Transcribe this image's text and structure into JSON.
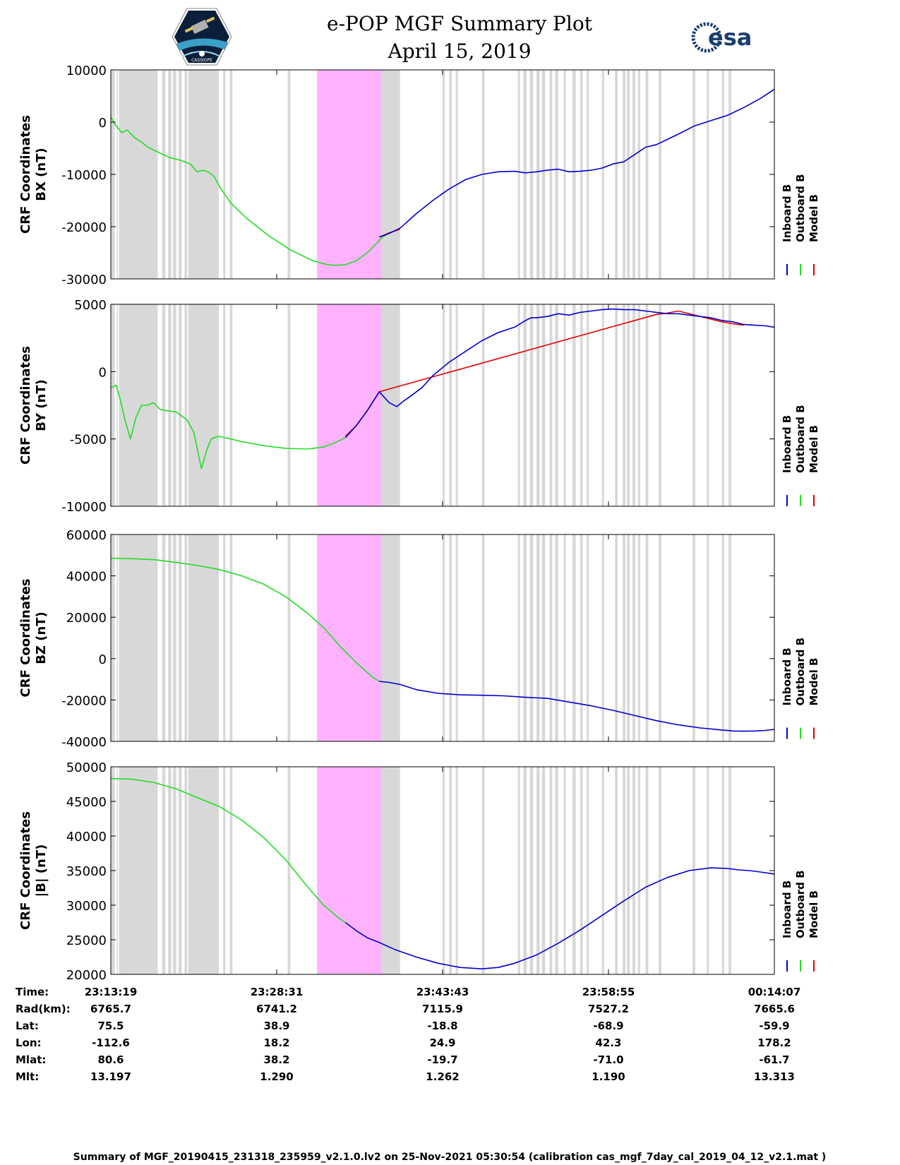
{
  "header": {
    "title": "e-POP MGF Summary Plot",
    "date": "April 15, 2019",
    "left_logo": "cassiope-satellite-logo",
    "right_logo": "esa-logo",
    "right_logo_text": "esa"
  },
  "legend": [
    "Inboard B",
    "Outboard B",
    "Model B"
  ],
  "colors": {
    "inboard": "#0000cc",
    "outboard": "#22dd22",
    "model": "#dd0000",
    "gray_band": "#d8d8d8",
    "magenta_band": "#ffb3ff"
  },
  "shading": {
    "time_range_min": [
      0,
      60.8
    ],
    "gray_intervals_min": [
      [
        0.0,
        0.35
      ],
      [
        0.55,
        0.65
      ],
      [
        0.75,
        4.3
      ],
      [
        4.7,
        5.0
      ],
      [
        5.25,
        5.55
      ],
      [
        5.7,
        6.0
      ],
      [
        6.2,
        6.5
      ],
      [
        6.75,
        7.0
      ],
      [
        7.1,
        9.9
      ],
      [
        10.3,
        10.5
      ],
      [
        10.9,
        11.15
      ],
      [
        16.2,
        16.45
      ],
      [
        24.2,
        24.5
      ],
      [
        25.2,
        25.45
      ],
      [
        25.9,
        26.15
      ],
      [
        30.4,
        30.6
      ],
      [
        31.0,
        31.25
      ],
      [
        31.6,
        31.8
      ],
      [
        34.0,
        34.25
      ],
      [
        37.3,
        37.5
      ],
      [
        37.8,
        38.1
      ],
      [
        38.4,
        38.7
      ],
      [
        39.0,
        39.3
      ],
      [
        39.5,
        39.8
      ],
      [
        40.2,
        40.45
      ],
      [
        40.7,
        41.0
      ],
      [
        41.5,
        41.7
      ],
      [
        42.3,
        42.6
      ],
      [
        43.0,
        43.25
      ],
      [
        43.6,
        43.8
      ],
      [
        45.0,
        45.2
      ],
      [
        46.2,
        46.45
      ],
      [
        46.9,
        47.15
      ],
      [
        47.3,
        47.55
      ],
      [
        47.8,
        48.05
      ],
      [
        48.3,
        48.5
      ],
      [
        49.0,
        49.25
      ],
      [
        50.2,
        50.45
      ],
      [
        53.3,
        53.55
      ],
      [
        54.6,
        54.8
      ],
      [
        56.0,
        56.2
      ],
      [
        56.6,
        56.85
      ]
    ],
    "extra_gray_min": [
      [
        24.2,
        26.5
      ]
    ],
    "magenta_interval_min": [
      18.9,
      24.8
    ]
  },
  "chart_data": [
    {
      "type": "line",
      "ylabel_line1": "CRF Coordinates",
      "ylabel_line2": "BX (nT)",
      "ylim": [
        -30000,
        10000
      ],
      "yticks": [
        10000,
        0,
        -10000,
        -20000,
        -30000
      ],
      "ytick_labels": [
        "10000",
        "0",
        "-10000",
        "-20000",
        "-30000"
      ],
      "series": [
        {
          "name": "Outboard B",
          "color": "#22dd22",
          "x": [
            0,
            0.4,
            1.0,
            1.5,
            2.2,
            2.8,
            3.4,
            4.0,
            4.6,
            5.4,
            6.4,
            7.3,
            7.9,
            8.5,
            9.0,
            9.5,
            10.0,
            11.0,
            12.5,
            14.5,
            16.5,
            18.5,
            19.7,
            20.5,
            21.5,
            22.5,
            23.5,
            24.3,
            24.9,
            25.3
          ],
          "y": [
            1000,
            -500,
            -2000,
            -1500,
            -3000,
            -3800,
            -4800,
            -5400,
            -6000,
            -6800,
            -7300,
            -8000,
            -9500,
            -9200,
            -9600,
            -10500,
            -12500,
            -15500,
            -18500,
            -21800,
            -24500,
            -26500,
            -27200,
            -27400,
            -27300,
            -26500,
            -25000,
            -23300,
            -22000,
            -21500
          ]
        },
        {
          "name": "Model B",
          "color": "#dd0000",
          "x": [
            24.6,
            25.5,
            26.5
          ],
          "y": [
            -22000,
            -21200,
            -20500
          ]
        },
        {
          "name": "Inboard B",
          "color": "#0000cc",
          "x": [
            24.6,
            25.5,
            26.5,
            28.0,
            29.5,
            31.0,
            32.5,
            34.0,
            35.5,
            37.0,
            38.0,
            39.0,
            40.0,
            41.0,
            42.0,
            43.0,
            44.0,
            45.0,
            46.0,
            47.0,
            48.0,
            49.0,
            50.0,
            51.0,
            52.0,
            53.5,
            55.0,
            56.5,
            58.0,
            59.5,
            60.8
          ],
          "y": [
            -22000,
            -21300,
            -20300,
            -17500,
            -15000,
            -12800,
            -11000,
            -10000,
            -9500,
            -9400,
            -9700,
            -9500,
            -9200,
            -9000,
            -9500,
            -9400,
            -9200,
            -8800,
            -8000,
            -7600,
            -6200,
            -4800,
            -4300,
            -3300,
            -2300,
            -700,
            300,
            1300,
            2800,
            4500,
            6300
          ]
        }
      ]
    },
    {
      "type": "line",
      "ylabel_line1": "CRF Coordinates",
      "ylabel_line2": "BY (nT)",
      "ylim": [
        -10000,
        5000
      ],
      "yticks": [
        5000,
        0,
        -5000,
        -10000
      ],
      "ytick_labels": [
        "5000",
        "0",
        "-5000",
        "-10000"
      ],
      "series": [
        {
          "name": "Outboard B",
          "color": "#22dd22",
          "x": [
            0,
            0.5,
            0.9,
            1.3,
            1.8,
            2.3,
            2.8,
            3.4,
            3.9,
            4.5,
            5.1,
            6.0,
            7.0,
            7.6,
            8.3,
            8.8,
            9.2,
            9.5,
            9.9,
            10.4,
            11.0,
            12.0,
            14.0,
            16.0,
            18.0,
            19.5,
            20.5,
            21.5
          ],
          "y": [
            -1200,
            -1000,
            -2200,
            -3600,
            -5000,
            -3400,
            -2500,
            -2500,
            -2300,
            -2800,
            -2900,
            -3000,
            -3600,
            -4500,
            -7200,
            -5800,
            -5000,
            -4900,
            -4800,
            -4900,
            -5000,
            -5200,
            -5500,
            -5700,
            -5750,
            -5600,
            -5300,
            -4900
          ]
        },
        {
          "name": "Model B",
          "color": "#dd0000",
          "x": [
            21.5,
            22.5,
            23.5,
            24.6,
            50.0,
            51.0,
            52.0,
            56.0,
            57.0,
            58.0
          ],
          "y": [
            -4800,
            -4000,
            -2900,
            -1500,
            4250,
            4350,
            4500,
            3700,
            3550,
            3450
          ]
        },
        {
          "name": "Inboard B",
          "color": "#0000cc",
          "x": [
            21.5,
            22.5,
            23.5,
            24.6,
            25.5,
            26.2,
            26.8,
            27.5,
            28.5,
            29.5,
            31.0,
            32.5,
            34.0,
            35.5,
            37.0,
            38.0,
            38.5,
            39.0,
            40.0,
            41.0,
            42.0,
            43.0,
            44.0,
            45.0,
            46.0,
            47.0,
            48.0,
            49.0,
            50.0,
            51.0,
            52.0,
            53.0,
            54.0,
            55.0,
            56.0,
            57.0,
            58.0,
            59.0,
            60.0,
            60.8
          ],
          "y": [
            -4900,
            -4000,
            -2900,
            -1500,
            -2300,
            -2600,
            -2200,
            -1800,
            -1200,
            -300,
            700,
            1500,
            2300,
            2900,
            3300,
            3800,
            4000,
            4000,
            4100,
            4300,
            4200,
            4400,
            4500,
            4600,
            4650,
            4600,
            4600,
            4500,
            4400,
            4300,
            4300,
            4200,
            4100,
            4000,
            3800,
            3700,
            3500,
            3450,
            3400,
            3300
          ]
        }
      ]
    },
    {
      "type": "line",
      "ylabel_line1": "CRF Coordinates",
      "ylabel_line2": "BZ (nT)",
      "ylim": [
        -40000,
        60000
      ],
      "yticks": [
        60000,
        40000,
        20000,
        0,
        -20000,
        -40000
      ],
      "ytick_labels": [
        "60000",
        "40000",
        "20000",
        "0",
        "-20000",
        "-40000"
      ],
      "series": [
        {
          "name": "Outboard B",
          "color": "#22dd22",
          "x": [
            0,
            2,
            4,
            6,
            8,
            10,
            12,
            14,
            16,
            18,
            19.5,
            21,
            22.5,
            24,
            24.6
          ],
          "y": [
            48500,
            48300,
            47800,
            46500,
            45000,
            43000,
            40000,
            36000,
            30000,
            22000,
            15000,
            6000,
            -2000,
            -9000,
            -11000
          ]
        },
        {
          "name": "Inboard B",
          "color": "#0000cc",
          "x": [
            24.6,
            25.5,
            26.5,
            28.0,
            30.0,
            32.0,
            34.0,
            36.0,
            38.0,
            40.0,
            42.0,
            44.0,
            46.0,
            48.0,
            50.0,
            52.0,
            54.0,
            56.0,
            57.0,
            58.0,
            59.0,
            60.0,
            60.8
          ],
          "y": [
            -11000,
            -11500,
            -12500,
            -15000,
            -16800,
            -17500,
            -17700,
            -18000,
            -18700,
            -19200,
            -21000,
            -22800,
            -25000,
            -27500,
            -30000,
            -32000,
            -33500,
            -34500,
            -35000,
            -35100,
            -35000,
            -34700,
            -34200
          ]
        }
      ]
    },
    {
      "type": "line",
      "ylabel_line1": "CRF Coordinates",
      "ylabel_line2": "|B| (nT)",
      "ylim": [
        20000,
        50000
      ],
      "yticks": [
        50000,
        45000,
        40000,
        35000,
        30000,
        25000,
        20000
      ],
      "ytick_labels": [
        "50000",
        "45000",
        "40000",
        "35000",
        "30000",
        "25000",
        "20000"
      ],
      "series": [
        {
          "name": "Outboard B",
          "color": "#22dd22",
          "x": [
            0,
            2,
            4,
            6,
            8,
            10,
            12,
            14,
            16,
            18,
            19.5,
            21,
            21.5
          ],
          "y": [
            48300,
            48200,
            47700,
            46800,
            45500,
            44200,
            42300,
            39800,
            36600,
            32700,
            30000,
            28000,
            27500
          ]
        },
        {
          "name": "Inboard B",
          "color": "#0000cc",
          "x": [
            21.5,
            22.5,
            23.5,
            24.6,
            26.0,
            28.0,
            30.0,
            32.0,
            34.0,
            35.5,
            37.0,
            39.0,
            41.0,
            43.0,
            45.0,
            47.0,
            49.0,
            51.0,
            53.0,
            55.0,
            56.5,
            57.5,
            58.5,
            59.5,
            60.8
          ],
          "y": [
            27500,
            26300,
            25300,
            24600,
            23600,
            22500,
            21600,
            21000,
            20800,
            21000,
            21600,
            22800,
            24500,
            26400,
            28500,
            30600,
            32600,
            34000,
            35000,
            35400,
            35300,
            35100,
            35000,
            34800,
            34500
          ]
        }
      ]
    }
  ],
  "time_axis": {
    "columns": [
      "23:13:19",
      "23:28:31",
      "23:43:43",
      "23:58:55",
      "00:14:07"
    ],
    "rows": [
      {
        "label": "Time:",
        "values": [
          "23:13:19",
          "23:28:31",
          "23:43:43",
          "23:58:55",
          "00:14:07"
        ]
      },
      {
        "label": "Rad(km):",
        "values": [
          "6765.7",
          "6741.2",
          "7115.9",
          "7527.2",
          "7665.6"
        ]
      },
      {
        "label": "Lat:",
        "values": [
          "75.5",
          "38.9",
          "-18.8",
          "-68.9",
          "-59.9"
        ]
      },
      {
        "label": "Lon:",
        "values": [
          "-112.6",
          "18.2",
          "24.9",
          "42.3",
          "178.2"
        ]
      },
      {
        "label": "Mlat:",
        "values": [
          "80.6",
          "38.2",
          "-19.7",
          "-71.0",
          "-61.7"
        ]
      },
      {
        "label": "Mlt:",
        "values": [
          "13.197",
          "1.290",
          "1.262",
          "1.190",
          "13.313"
        ]
      }
    ]
  },
  "footer": "Summary of MGF_20190415_231318_235959_v2.1.0.lv2 on 25-Nov-2021 05:30:54 (calibration cas_mgf_7day_cal_2019_04_12_v2.1.mat )"
}
